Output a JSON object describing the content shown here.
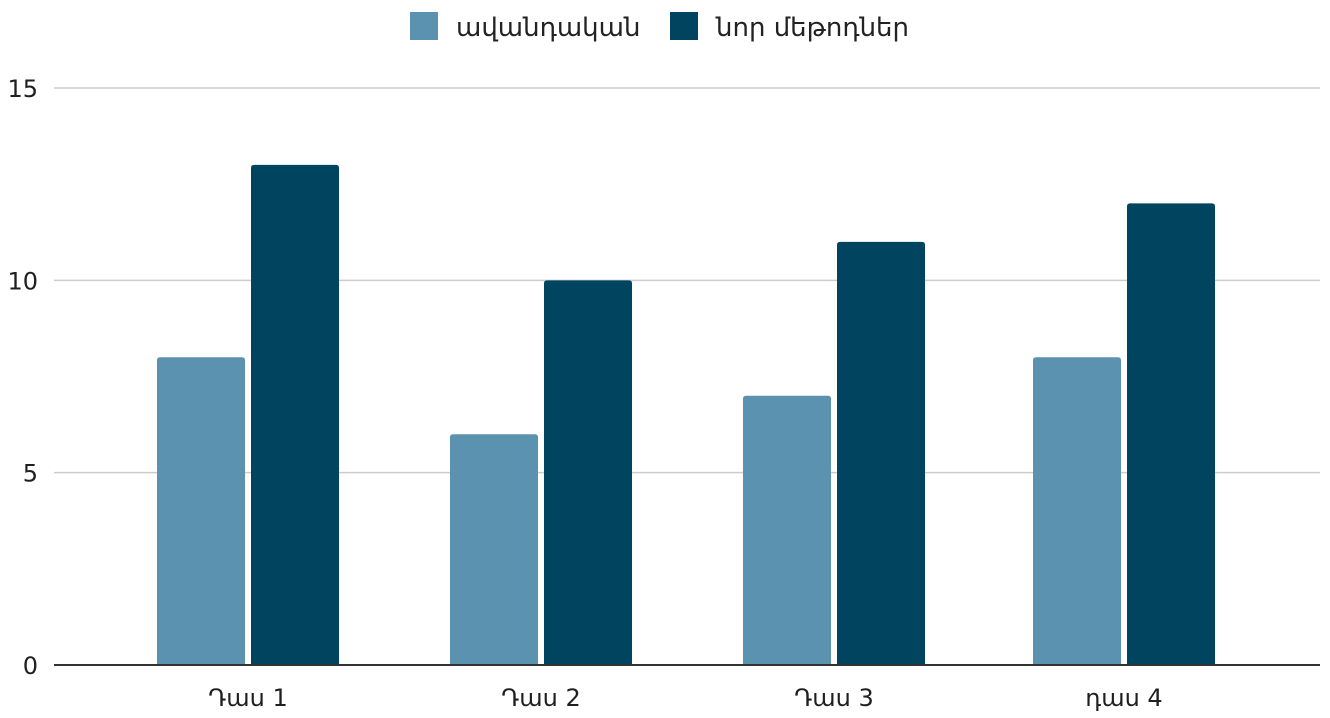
{
  "chart_data": {
    "type": "bar",
    "categories": [
      "Դաս 1",
      "Դաս 2",
      "Դաս 3",
      "դաս 4"
    ],
    "series": [
      {
        "name": "ավանդական",
        "values": [
          8,
          6,
          7,
          8
        ],
        "color": "#5b92b0"
      },
      {
        "name": "նոր մեթոդներ",
        "values": [
          13,
          10,
          11,
          12
        ],
        "color": "#00445f"
      }
    ],
    "yticks": [
      "0",
      "5",
      "10",
      "15"
    ],
    "ylim": [
      0,
      15
    ],
    "grid": true,
    "legend_position": "top-center"
  }
}
